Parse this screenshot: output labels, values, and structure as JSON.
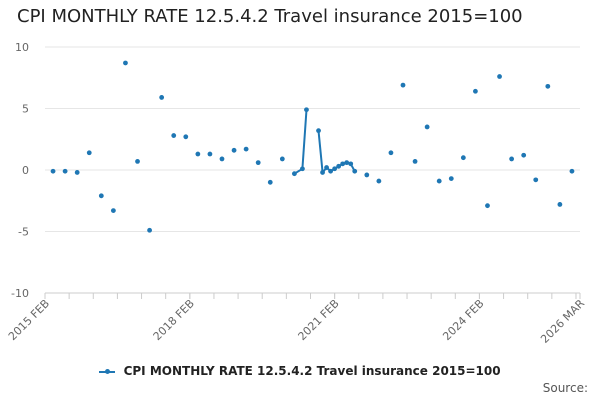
{
  "chart_data": {
    "type": "scatter",
    "title": "CPI MONTHLY RATE 12.5.4.2 Travel insurance 2015=100",
    "xlabel": "",
    "ylabel": "",
    "ylim": [
      -10,
      10
    ],
    "yticks": [
      -10,
      -5,
      0,
      5,
      10
    ],
    "xlim": [
      2015.0833,
      2026.1667
    ],
    "xticks": [
      {
        "label": "2015 FEB",
        "x": 2015.0833
      },
      {
        "label": "2018 FEB",
        "x": 2018.0833
      },
      {
        "label": "2021 FEB",
        "x": 2021.0833
      },
      {
        "label": "2024 FEB",
        "x": 2024.0833
      },
      {
        "label": "2026 MAR",
        "x": 2026.1667
      }
    ],
    "color": "#1f77b4",
    "legend": "CPI MONTHLY RATE 12.5.4.2 Travel insurance 2015=100",
    "points": [
      {
        "x": 2015.25,
        "y": -0.1
      },
      {
        "x": 2015.5,
        "y": -0.1
      },
      {
        "x": 2015.75,
        "y": -0.2
      },
      {
        "x": 2016.0,
        "y": 1.4
      },
      {
        "x": 2016.25,
        "y": -2.1
      },
      {
        "x": 2016.5,
        "y": -3.3
      },
      {
        "x": 2016.75,
        "y": 8.7
      },
      {
        "x": 2017.0,
        "y": 0.7
      },
      {
        "x": 2017.25,
        "y": -4.9
      },
      {
        "x": 2017.5,
        "y": 5.9
      },
      {
        "x": 2017.75,
        "y": 2.8
      },
      {
        "x": 2018.0,
        "y": 2.7
      },
      {
        "x": 2018.25,
        "y": 1.3
      },
      {
        "x": 2018.5,
        "y": 1.3
      },
      {
        "x": 2018.75,
        "y": 0.9
      },
      {
        "x": 2019.0,
        "y": 1.6
      },
      {
        "x": 2019.25,
        "y": 1.7
      },
      {
        "x": 2019.5,
        "y": 0.6
      },
      {
        "x": 2019.75,
        "y": -1.0
      },
      {
        "x": 2020.0,
        "y": 0.9
      },
      {
        "x": 2020.25,
        "y": -0.3
      },
      {
        "x": 2020.4167,
        "y": 0.1
      },
      {
        "x": 2020.5,
        "y": 4.9
      },
      {
        "x": 2020.75,
        "y": 3.2
      },
      {
        "x": 2020.8333,
        "y": -0.2
      },
      {
        "x": 2020.9167,
        "y": 0.2
      },
      {
        "x": 2021.0,
        "y": -0.1
      },
      {
        "x": 2021.0833,
        "y": 0.1
      },
      {
        "x": 2021.1667,
        "y": 0.3
      },
      {
        "x": 2021.25,
        "y": 0.5
      },
      {
        "x": 2021.3333,
        "y": 0.6
      },
      {
        "x": 2021.4167,
        "y": 0.5
      },
      {
        "x": 2021.5,
        "y": -0.1
      },
      {
        "x": 2021.75,
        "y": -0.4
      },
      {
        "x": 2022.0,
        "y": -0.9
      },
      {
        "x": 2022.25,
        "y": 1.4
      },
      {
        "x": 2022.5,
        "y": 6.9
      },
      {
        "x": 2022.75,
        "y": 0.7
      },
      {
        "x": 2023.0,
        "y": 3.5
      },
      {
        "x": 2023.25,
        "y": -0.9
      },
      {
        "x": 2023.5,
        "y": -0.7
      },
      {
        "x": 2023.75,
        "y": 1.0
      },
      {
        "x": 2024.0,
        "y": 6.4
      },
      {
        "x": 2024.25,
        "y": -2.9
      },
      {
        "x": 2024.5,
        "y": 7.6
      },
      {
        "x": 2024.75,
        "y": 0.9
      },
      {
        "x": 2025.0,
        "y": 1.2
      },
      {
        "x": 2025.25,
        "y": -0.8
      },
      {
        "x": 2025.5,
        "y": 6.8
      },
      {
        "x": 2025.75,
        "y": -2.8
      },
      {
        "x": 2026.0,
        "y": -0.1
      }
    ],
    "connected_runs": [
      [
        20,
        22
      ],
      [
        23,
        32
      ]
    ]
  },
  "source_label": "Source:"
}
